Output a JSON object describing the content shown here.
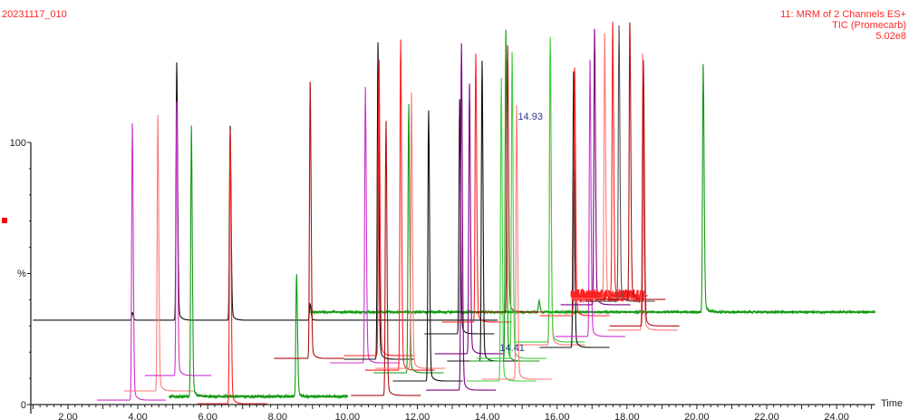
{
  "header": {
    "sample_name": "20231117_010",
    "function_line": "11: MRM of 2 Channels ES+",
    "trace_line": "TIC (Promecarb)",
    "intensity": "5.02e8"
  },
  "chart_data": {
    "type": "line",
    "title": "",
    "xlabel": "Time",
    "ylabel": "%",
    "xlim": [
      1.0,
      25.1
    ],
    "ylim": [
      0,
      100
    ],
    "x_ticks": [
      "2.00",
      "4.00",
      "6.00",
      "8.00",
      "10.00",
      "12.00",
      "14.00",
      "16.00",
      "18.00",
      "20.00",
      "22.00",
      "24.00"
    ],
    "x_tick_values": [
      2,
      4,
      6,
      8,
      10,
      12,
      14,
      16,
      18,
      20,
      22,
      24
    ],
    "y_ticks": [
      "0",
      "100"
    ],
    "y_tick_values": [
      0,
      100
    ],
    "grid": false,
    "legend": "none",
    "colors": {
      "magenta": "#cc33cc",
      "purple": "#800080",
      "red": "#ff2020",
      "pink": "#ff7a7a",
      "darkred": "#b01010",
      "black": "#111111",
      "green": "#159a15",
      "lightgreen": "#3fd03f",
      "grey": "#555555"
    },
    "annotations": [
      {
        "text": "14.41",
        "x": 14.41,
        "y": 21.8
      },
      {
        "text": "14.93",
        "x": 14.93,
        "y": 110
      }
    ],
    "series": [
      {
        "color": "black",
        "baseline": 32.2,
        "from": 1.0,
        "to": 14.3,
        "peaks": [
          {
            "rt": 3.84,
            "apex": 35
          },
          {
            "rt": 5.11,
            "apex": 125.3
          },
          {
            "rt": 6.64,
            "apex": 103
          },
          {
            "rt": 8.93,
            "apex": 38
          }
        ]
      },
      {
        "color": "green",
        "baseline": 35.3,
        "from": 8.9,
        "to": 25.1,
        "noise": 0.4,
        "peaks": [
          {
            "rt": 15.48,
            "apex": 39.4
          },
          {
            "rt": 20.18,
            "apex": 124.6
          }
        ]
      },
      {
        "color": "magenta",
        "baseline": 1.7,
        "from": 2.83,
        "to": 4.8,
        "peaks": [
          {
            "rt": 3.84,
            "apex": 101.7
          }
        ]
      },
      {
        "color": "pink",
        "baseline": 5.2,
        "from": 3.6,
        "to": 5.6,
        "peaks": [
          {
            "rt": 4.57,
            "apex": 104.8
          }
        ]
      },
      {
        "color": "magenta",
        "baseline": 11.1,
        "from": 4.2,
        "to": 6.1,
        "peaks": [
          {
            "rt": 5.11,
            "apex": 110
          }
        ]
      },
      {
        "color": "green",
        "baseline": 3.1,
        "from": 4.9,
        "to": 10.0,
        "noise": 0.5,
        "peaks": [
          {
            "rt": 5.53,
            "apex": 100.7
          },
          {
            "rt": 8.54,
            "apex": 48.1
          }
        ]
      },
      {
        "color": "red",
        "baseline": 0.3,
        "from": 5.7,
        "to": 7.7,
        "peaks": [
          {
            "rt": 6.64,
            "apex": 100
          }
        ]
      },
      {
        "color": "darkred",
        "baseline": 17.6,
        "from": 7.9,
        "to": 9.9,
        "peaks": [
          {
            "rt": 8.93,
            "apex": 117.6
          }
        ]
      },
      {
        "color": "magenta",
        "baseline": 15.9,
        "from": 9.5,
        "to": 11.5,
        "peaks": [
          {
            "rt": 10.51,
            "apex": 115.6
          }
        ]
      },
      {
        "color": "black",
        "baseline": 17.3,
        "from": 9.9,
        "to": 11.9,
        "peaks": [
          {
            "rt": 10.87,
            "apex": 131.8
          }
        ]
      },
      {
        "color": "red",
        "baseline": 18.7,
        "from": 9.9,
        "to": 11.9,
        "peaks": [
          {
            "rt": 10.9,
            "apex": 126.6
          }
        ]
      },
      {
        "color": "darkred",
        "baseline": 3.5,
        "from": 10.1,
        "to": 12.1,
        "peaks": [
          {
            "rt": 11.1,
            "apex": 103.5
          }
        ]
      },
      {
        "color": "red",
        "baseline": 13.1,
        "from": 10.5,
        "to": 12.5,
        "peaks": [
          {
            "rt": 11.52,
            "apex": 133.6
          }
        ]
      },
      {
        "color": "green",
        "baseline": 12.1,
        "from": 10.75,
        "to": 12.75,
        "peaks": [
          {
            "rt": 11.75,
            "apex": 110
          }
        ]
      },
      {
        "color": "pink",
        "baseline": 13.8,
        "from": 10.8,
        "to": 12.8,
        "peaks": [
          {
            "rt": 11.83,
            "apex": 113.5
          }
        ]
      },
      {
        "color": "black",
        "baseline": 9.0,
        "from": 11.3,
        "to": 13.3,
        "peaks": [
          {
            "rt": 12.32,
            "apex": 107.6
          }
        ]
      },
      {
        "color": "black",
        "baseline": 27.0,
        "from": 12.2,
        "to": 14.2,
        "peaks": [
          {
            "rt": 13.21,
            "apex": 111.8
          }
        ]
      },
      {
        "color": "purple",
        "baseline": 5.5,
        "from": 12.25,
        "to": 14.25,
        "peaks": [
          {
            "rt": 13.26,
            "apex": 130.8
          }
        ]
      },
      {
        "color": "purple",
        "baseline": 19.4,
        "from": 12.5,
        "to": 14.5,
        "peaks": [
          {
            "rt": 13.49,
            "apex": 117
          }
        ]
      },
      {
        "color": "red",
        "baseline": 31.5,
        "from": 12.7,
        "to": 14.7,
        "peaks": [
          {
            "rt": 13.67,
            "apex": 128.4
          }
        ]
      },
      {
        "color": "black",
        "baseline": 16.6,
        "from": 12.85,
        "to": 14.85,
        "peaks": [
          {
            "rt": 13.85,
            "apex": 126
          }
        ]
      },
      {
        "color": "lightgreen",
        "baseline": 9.0,
        "from": 13.4,
        "to": 15.4,
        "peaks": [
          {
            "rt": 14.4,
            "apex": 119.4
          }
        ]
      },
      {
        "color": "green",
        "baseline": 16.6,
        "from": 13.5,
        "to": 15.5,
        "peaks": [
          {
            "rt": 14.53,
            "apex": 136.3
          }
        ]
      },
      {
        "color": "darkred",
        "baseline": 35.3,
        "from": 13.6,
        "to": 15.6,
        "peaks": [
          {
            "rt": 14.58,
            "apex": 132.5
          }
        ]
      },
      {
        "color": "lightgreen",
        "baseline": 17.6,
        "from": 13.7,
        "to": 15.7,
        "peaks": [
          {
            "rt": 14.71,
            "apex": 128.4
          }
        ]
      },
      {
        "color": "pink",
        "baseline": 9.7,
        "from": 13.85,
        "to": 15.85,
        "peaks": [
          {
            "rt": 14.84,
            "apex": 108.7
          }
        ]
      },
      {
        "color": "pink",
        "baseline": 22.8,
        "from": 14.8,
        "to": 16.8,
        "peaks": [
          {
            "rt": 15.8,
            "apex": 133.6
          }
        ]
      },
      {
        "color": "lightgreen",
        "baseline": 23.9,
        "from": 14.8,
        "to": 16.8,
        "peaks": [
          {
            "rt": 15.8,
            "apex": 135
          }
        ]
      },
      {
        "color": "black",
        "baseline": 21.8,
        "from": 15.5,
        "to": 17.5,
        "peaks": [
          {
            "rt": 16.47,
            "apex": 121.5
          }
        ]
      },
      {
        "color": "red",
        "baseline": 33.9,
        "from": 15.5,
        "to": 17.5,
        "peaks": [
          {
            "rt": 16.5,
            "apex": 123.2
          }
        ]
      },
      {
        "color": "magenta",
        "baseline": 26.0,
        "from": 15.95,
        "to": 17.95,
        "peaks": [
          {
            "rt": 16.94,
            "apex": 126
          }
        ]
      },
      {
        "color": "purple",
        "baseline": 38.1,
        "from": 16.1,
        "to": 18.1,
        "peaks": [
          {
            "rt": 17.07,
            "apex": 137.7
          }
        ]
      },
      {
        "color": "red",
        "baseline": 41.5,
        "from": 16.4,
        "to": 18.5,
        "noise": 2.5,
        "peaks": []
      },
      {
        "color": "pink",
        "baseline": 40.5,
        "from": 16.4,
        "to": 18.4,
        "peaks": [
          {
            "rt": 17.36,
            "apex": 136
          }
        ]
      },
      {
        "color": "red",
        "baseline": 41.5,
        "from": 16.6,
        "to": 18.6,
        "peaks": [
          {
            "rt": 17.59,
            "apex": 140.5
          }
        ]
      },
      {
        "color": "grey",
        "baseline": 39.4,
        "from": 16.8,
        "to": 18.8,
        "peaks": [
          {
            "rt": 17.77,
            "apex": 139.1
          }
        ]
      },
      {
        "color": "darkred",
        "baseline": 40.1,
        "from": 17.1,
        "to": 19.1,
        "peaks": [
          {
            "rt": 18.08,
            "apex": 139.8
          }
        ]
      },
      {
        "color": "pink",
        "baseline": 28.4,
        "from": 17.45,
        "to": 19.45,
        "peaks": [
          {
            "rt": 18.45,
            "apex": 128
          }
        ]
      },
      {
        "color": "darkred",
        "baseline": 30.0,
        "from": 17.5,
        "to": 19.5,
        "peaks": [
          {
            "rt": 18.47,
            "apex": 126
          }
        ]
      }
    ]
  }
}
